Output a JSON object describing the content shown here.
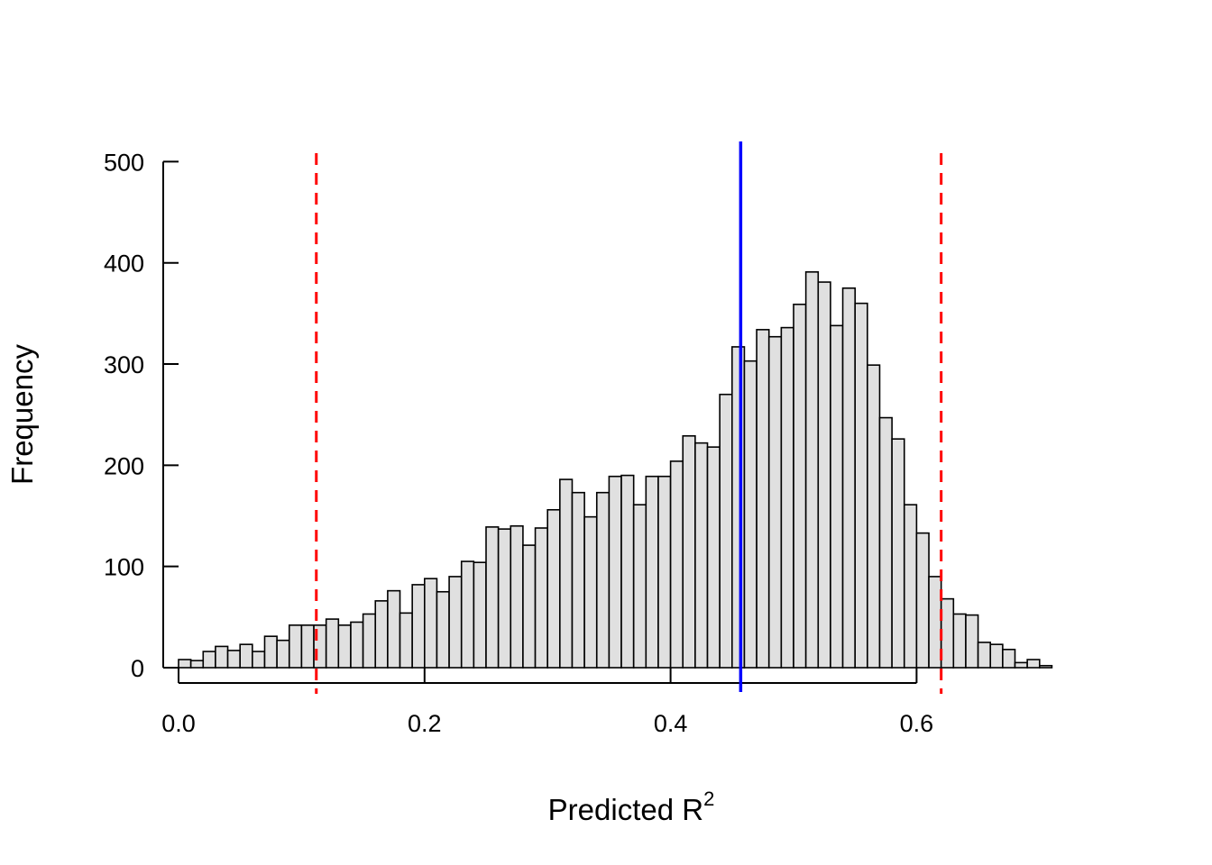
{
  "chart_data": {
    "type": "bar",
    "subtype": "histogram",
    "xlabel": "Predicted R",
    "xlabel_superscript": "2",
    "ylabel": "Frequency",
    "xlim": [
      0.0,
      0.71
    ],
    "ylim": [
      0,
      500
    ],
    "x_ticks": [
      "0.0",
      "0.2",
      "0.4",
      "0.6"
    ],
    "y_ticks": [
      "0",
      "100",
      "200",
      "300",
      "400",
      "500"
    ],
    "bin_width": 0.01,
    "bin_start": 0.0,
    "values": [
      8,
      7,
      16,
      21,
      17,
      23,
      16,
      31,
      27,
      42,
      42,
      42,
      48,
      42,
      45,
      53,
      66,
      76,
      54,
      82,
      88,
      75,
      90,
      105,
      104,
      139,
      137,
      140,
      121,
      138,
      156,
      186,
      173,
      149,
      173,
      189,
      190,
      161,
      189,
      189,
      204,
      229,
      222,
      218,
      270,
      317,
      303,
      334,
      327,
      336,
      359,
      391,
      381,
      338,
      375,
      360,
      299,
      247,
      226,
      161,
      133,
      90,
      68,
      53,
      52,
      25,
      23,
      18,
      5,
      8,
      2
    ],
    "reference_lines": [
      {
        "x": 0.112,
        "style": "dashed",
        "color": "#ff0000"
      },
      {
        "x": 0.457,
        "style": "solid",
        "color": "#0000ff"
      },
      {
        "x": 0.62,
        "style": "dashed",
        "color": "#ff0000"
      }
    ],
    "bar_fill": "#e0e0e0",
    "bar_stroke": "#000000",
    "grid": false,
    "legend": "none"
  }
}
